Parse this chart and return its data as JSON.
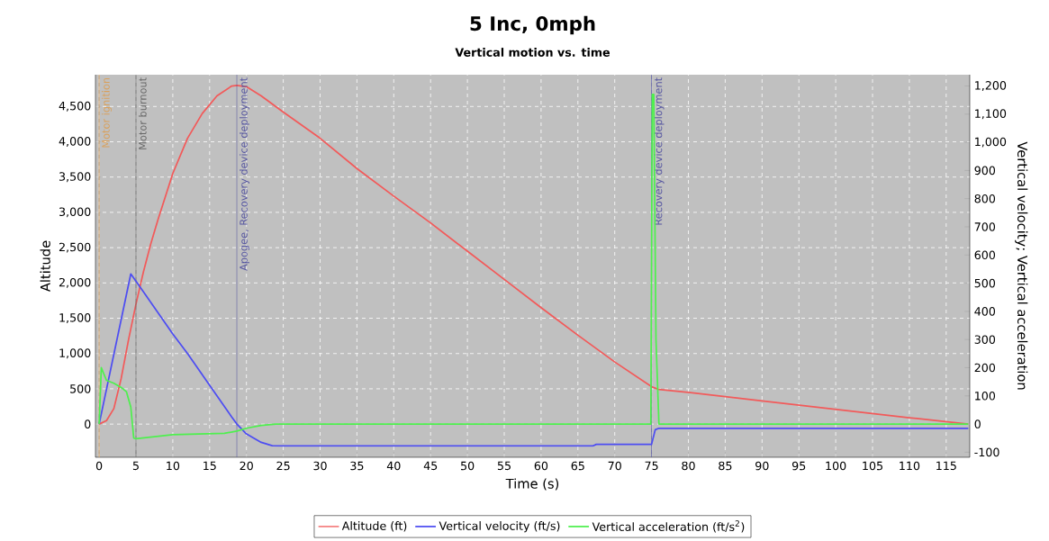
{
  "chart_data": {
    "type": "line",
    "title": "5 Inc, 0mph",
    "subtitle": "Vertical motion vs. time",
    "xlabel": "Time (s)",
    "ylabel": "Altitude",
    "y2label": "Vertical velocity; Vertical acceleration",
    "xlim": [
      -0.5,
      118.2
    ],
    "xticks": [
      0,
      5,
      10,
      15,
      20,
      25,
      30,
      35,
      40,
      45,
      50,
      55,
      60,
      65,
      70,
      75,
      80,
      85,
      90,
      95,
      100,
      105,
      110,
      115
    ],
    "ylim": [
      -470,
      4950
    ],
    "yticks": [
      {
        "value": 0,
        "label": "0"
      },
      {
        "value": 500,
        "label": "500"
      },
      {
        "value": 1000,
        "label": "1,000"
      },
      {
        "value": 1500,
        "label": "1,500"
      },
      {
        "value": 2000,
        "label": "2,000"
      },
      {
        "value": 2500,
        "label": "2,500"
      },
      {
        "value": 3000,
        "label": "3,000"
      },
      {
        "value": 3500,
        "label": "3,500"
      },
      {
        "value": 4000,
        "label": "4,000"
      },
      {
        "value": 4500,
        "label": "4,500"
      }
    ],
    "y2lim": [
      -118,
      1240
    ],
    "y2ticks": [
      {
        "value": -100,
        "label": "-100"
      },
      {
        "value": 0,
        "label": "0"
      },
      {
        "value": 100,
        "label": "100"
      },
      {
        "value": 200,
        "label": "200"
      },
      {
        "value": 300,
        "label": "300"
      },
      {
        "value": 400,
        "label": "400"
      },
      {
        "value": 500,
        "label": "500"
      },
      {
        "value": 600,
        "label": "600"
      },
      {
        "value": 700,
        "label": "700"
      },
      {
        "value": 800,
        "label": "800"
      },
      {
        "value": 900,
        "label": "900"
      },
      {
        "value": 1000,
        "label": "1,000"
      },
      {
        "value": 1100,
        "label": "1,100"
      },
      {
        "value": 1200,
        "label": "1,200"
      }
    ],
    "grid": true,
    "legend": "bottom",
    "series": [
      {
        "name": "Altitude (ft)",
        "color": "#f25a5a",
        "x": [
          0,
          1,
          2,
          3,
          4,
          5,
          6,
          7,
          8,
          10,
          12,
          14,
          16,
          18,
          18.7,
          20,
          22,
          25,
          30,
          35,
          40,
          45,
          50,
          55,
          60,
          65,
          70,
          75,
          76,
          80,
          90,
          100,
          110,
          118
        ],
        "values": [
          0,
          50,
          220,
          650,
          1200,
          1700,
          2150,
          2550,
          2900,
          3550,
          4050,
          4400,
          4650,
          4790,
          4800,
          4780,
          4650,
          4420,
          4050,
          3620,
          3230,
          2850,
          2450,
          2050,
          1650,
          1260,
          880,
          530,
          490,
          450,
          330,
          210,
          90,
          0
        ]
      },
      {
        "name": "Vertical velocity (ft/s)",
        "color": "#4d4df2",
        "axis": "y2",
        "x": [
          0,
          4.3,
          6,
          8,
          10,
          12,
          14,
          16,
          18,
          18.7,
          20,
          22,
          23.5,
          25,
          67,
          67.5,
          75,
          75.5,
          76,
          118
        ],
        "values": [
          0,
          533,
          470,
          395,
          320,
          250,
          175,
          100,
          25,
          0,
          -35,
          -65,
          -77,
          -78,
          -78,
          -72,
          -72,
          -20,
          -15,
          -15
        ]
      },
      {
        "name": "Vertical acceleration (ft/s$^{2}$)",
        "color": "#4ef04e",
        "axis": "y2",
        "x": [
          0,
          0.3,
          1,
          2,
          3,
          3.7,
          4.3,
          4.7,
          5,
          10,
          17,
          18.7,
          20,
          22,
          24,
          74.9,
          75.1,
          75.3,
          75.6,
          76,
          118
        ],
        "values": [
          0,
          200,
          155,
          145,
          130,
          115,
          60,
          -50,
          -52,
          -38,
          -33,
          -25,
          -15,
          -5,
          0,
          0,
          1170,
          1170,
          300,
          0,
          0
        ]
      }
    ],
    "ref_lines": [
      {
        "axis": "x",
        "value": 0,
        "label": "Motor ignition",
        "color": "#d9a05b"
      },
      {
        "axis": "x",
        "value": 5,
        "label": "Motor burnout",
        "color": "#666666"
      },
      {
        "axis": "x",
        "value": 18.7,
        "label": "Apogee, Recovery device deployment",
        "color": "#5555a0"
      },
      {
        "axis": "x",
        "value": 75,
        "label": "Recovery device deployment",
        "color": "#5555a0"
      }
    ]
  }
}
